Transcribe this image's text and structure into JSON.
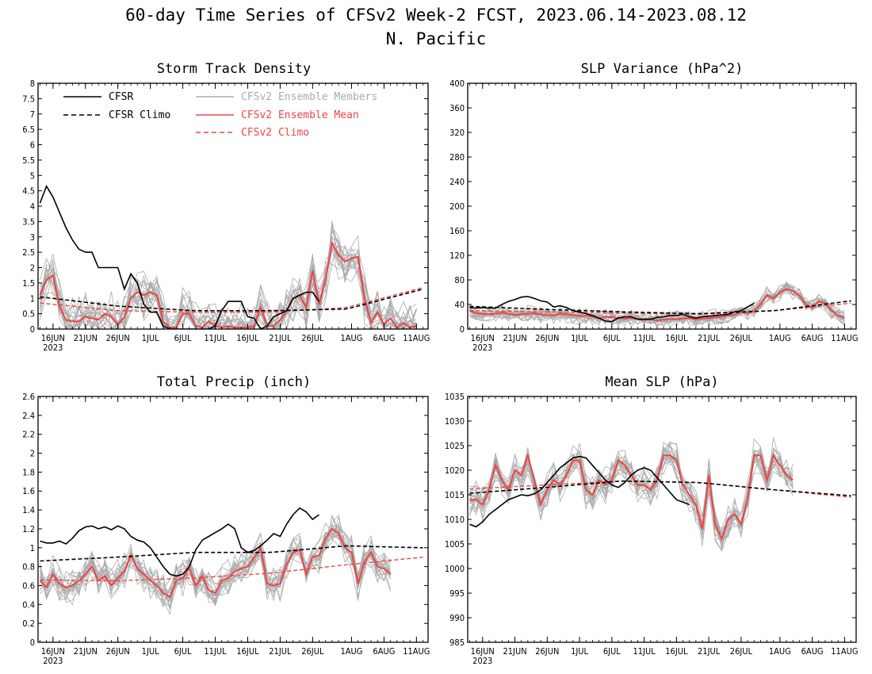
{
  "title_line1": "60-day Time Series of CFSv2 Week-2 FCST, 2023.06.14-2023.08.12",
  "title_line2": "N. Pacific",
  "colors": {
    "cfsr": "#000000",
    "ensemble_member": "#aaaaaa",
    "ensemble_mean": "#ee4444",
    "cfsv2_climo": "#ee4444"
  },
  "legend": {
    "cfsr": "CFSR",
    "cfsr_climo": "CFSR Climo",
    "members": "CFSv2 Ensemble Members",
    "mean": "CFSv2 Ensemble Mean",
    "cfsv2_climo": "CFSv2 Climo"
  },
  "x_ticks": {
    "labels": [
      "16JUN",
      "21JUN",
      "26JUN",
      "1JUL",
      "6JUL",
      "11JUL",
      "16JUL",
      "21JUL",
      "26JUL",
      "1AUG",
      "6AUG",
      "11AUG"
    ],
    "day_index": [
      2,
      7,
      12,
      17,
      22,
      27,
      32,
      37,
      42,
      48,
      53,
      58
    ],
    "year_label": "2023"
  },
  "chart_data": [
    {
      "type": "line",
      "title": "Storm Track Density",
      "x_unit": "day index from 2023-06-14",
      "ylim": [
        0,
        8
      ],
      "yticks": [
        "0",
        "0.5",
        "1",
        "1.5",
        "2",
        "2.5",
        "3",
        "3.5",
        "4",
        "4.5",
        "5",
        "5.5",
        "6",
        "6.5",
        "7",
        "7.5",
        "8"
      ],
      "show_legend": true,
      "legend_position": "top",
      "series": {
        "cfsr": [
          4.1,
          4.65,
          4.3,
          3.8,
          3.3,
          2.9,
          2.6,
          2.5,
          2.5,
          2.0,
          2.0,
          2.0,
          2.0,
          1.3,
          1.8,
          1.5,
          0.8,
          0.55,
          0.55,
          0.1,
          0,
          0,
          0,
          0,
          0,
          0,
          0,
          0.1,
          0.6,
          0.9,
          0.9,
          0.9,
          0.4,
          0.35,
          0,
          0.1,
          0.4,
          0.5,
          0.6,
          1.0,
          1.1,
          1.2,
          1.2,
          0.9
        ],
        "cfsr_climo": [
          1.05,
          0.75,
          0.6,
          0.6,
          0.65,
          1.3
        ],
        "ensemble_mean": [
          1.1,
          1.6,
          1.75,
          0.75,
          0.3,
          0.25,
          0.25,
          0.4,
          0.35,
          0.3,
          0.5,
          0.4,
          0.15,
          0.4,
          1.0,
          1.2,
          1.1,
          1.2,
          1.1,
          0.25,
          0.05,
          0.05,
          0.5,
          0.5,
          0.1,
          0.05,
          0.25,
          0.1,
          0.05,
          0.1,
          0.05,
          0.05,
          0.05,
          0.1,
          0.7,
          0.1,
          0.1,
          0.3,
          0.6,
          1.0,
          1.1,
          0.7,
          1.9,
          0.8,
          1.6,
          2.8,
          2.4,
          2.2,
          2.3,
          2.35,
          1.0,
          0.2,
          0.55,
          0.15,
          0.35,
          0.05,
          0.2,
          0.05,
          0.1
        ],
        "cfsv2_climo": [
          0.85,
          0.6,
          0.55,
          0.55,
          0.7,
          1.35
        ],
        "ensemble_spread": 0.55
      }
    },
    {
      "type": "line",
      "title": "SLP Variance (hPa^2)",
      "x_unit": "day index from 2023-06-14",
      "ylim": [
        0,
        400
      ],
      "yticks": [
        "0",
        "40",
        "80",
        "120",
        "160",
        "200",
        "240",
        "280",
        "320",
        "360",
        "400"
      ],
      "show_legend": false,
      "series": {
        "cfsr": [
          35,
          34,
          35,
          34,
          34,
          40,
          45,
          48,
          52,
          53,
          50,
          46,
          44,
          36,
          38,
          35,
          30,
          28,
          25,
          22,
          18,
          13,
          12,
          18,
          20,
          20,
          16,
          16,
          16,
          19,
          20,
          22,
          22,
          24,
          20,
          18,
          20,
          21,
          22,
          23,
          24,
          28,
          30,
          36,
          42
        ],
        "cfsr_climo": [
          37,
          32,
          28,
          25,
          30,
          46
        ],
        "ensemble_mean": [
          30,
          26,
          25,
          24,
          25,
          27,
          25,
          23,
          24,
          25,
          26,
          24,
          23,
          22,
          25,
          24,
          23,
          21,
          22,
          20,
          18,
          20,
          19,
          18,
          17,
          18,
          16,
          15,
          16,
          14,
          15,
          16,
          16,
          17,
          18,
          16,
          17,
          18,
          19,
          20,
          22,
          24,
          28,
          26,
          30,
          40,
          55,
          50,
          60,
          65,
          62,
          55,
          40,
          35,
          45,
          42,
          30,
          22,
          18
        ],
        "cfsv2_climo": [
          30,
          28,
          26,
          24,
          30,
          42
        ],
        "ensemble_spread": 9
      }
    },
    {
      "type": "line",
      "title": "Total Precip (inch)",
      "x_unit": "day index from 2023-06-14",
      "ylim": [
        0,
        2.6
      ],
      "yticks": [
        "0",
        "0.2",
        "0.4",
        "0.6",
        "0.8",
        "1",
        "1.2",
        "1.4",
        "1.6",
        "1.8",
        "2",
        "2.2",
        "2.4",
        "2.6"
      ],
      "show_legend": false,
      "series": {
        "cfsr": [
          1.07,
          1.05,
          1.05,
          1.07,
          1.04,
          1.1,
          1.18,
          1.22,
          1.23,
          1.2,
          1.22,
          1.19,
          1.23,
          1.2,
          1.12,
          1.08,
          1.06,
          1.0,
          0.9,
          0.8,
          0.72,
          0.7,
          0.72,
          0.8,
          0.98,
          1.08,
          1.12,
          1.16,
          1.2,
          1.25,
          1.2,
          1.0,
          0.95,
          0.97,
          1.02,
          1.08,
          1.15,
          1.12,
          1.25,
          1.35,
          1.42,
          1.38,
          1.3,
          1.35
        ],
        "cfsr_climo": [
          0.86,
          0.9,
          0.95,
          0.95,
          1.02,
          1.0
        ],
        "ensemble_mean": [
          0.65,
          0.58,
          0.72,
          0.62,
          0.58,
          0.6,
          0.65,
          0.72,
          0.8,
          0.65,
          0.7,
          0.6,
          0.68,
          0.75,
          0.92,
          0.78,
          0.72,
          0.65,
          0.6,
          0.52,
          0.48,
          0.65,
          0.68,
          0.78,
          0.6,
          0.7,
          0.55,
          0.52,
          0.65,
          0.68,
          0.75,
          0.78,
          0.8,
          0.9,
          1.0,
          0.62,
          0.6,
          0.62,
          0.82,
          0.95,
          0.98,
          0.72,
          0.9,
          0.92,
          1.1,
          1.2,
          1.15,
          1.0,
          0.95,
          0.62,
          0.85,
          0.95,
          0.8,
          0.78,
          0.72
        ],
        "cfsv2_climo": [
          0.66,
          0.65,
          0.68,
          0.73,
          0.82,
          0.9
        ],
        "ensemble_spread": 0.13
      }
    },
    {
      "type": "line",
      "title": "Mean SLP (hPa)",
      "x_unit": "day index from 2023-06-14",
      "ylim": [
        985,
        1035
      ],
      "yticks": [
        "985",
        "990",
        "995",
        "1000",
        "1005",
        "1010",
        "1015",
        "1020",
        "1025",
        "1030",
        "1035"
      ],
      "show_legend": false,
      "series": {
        "cfsr": [
          1009,
          1008.5,
          1009.5,
          1011,
          1012,
          1013,
          1014,
          1014.5,
          1015,
          1014.8,
          1015.2,
          1016,
          1017.5,
          1019,
          1020.5,
          1021.5,
          1022.5,
          1022.8,
          1022.5,
          1021,
          1019.5,
          1018,
          1017,
          1016.5,
          1017.5,
          1019,
          1020,
          1020.5,
          1020,
          1018.5,
          1017,
          1015.5,
          1014,
          1013.5,
          1013
        ],
        "cfsr_climo": [
          1015.3,
          1016.5,
          1017.8,
          1017.5,
          1016,
          1014.8
        ],
        "ensemble_mean": [
          1014,
          1014,
          1013,
          1016,
          1021,
          1018,
          1016,
          1020,
          1019,
          1023,
          1018,
          1013,
          1016,
          1018,
          1017,
          1019,
          1022,
          1022,
          1016,
          1015,
          1018,
          1017,
          1018,
          1022,
          1021,
          1019,
          1017,
          1017,
          1016,
          1018,
          1023,
          1023,
          1022,
          1017,
          1015,
          1013,
          1008,
          1019,
          1009,
          1006,
          1010,
          1011,
          1009,
          1014,
          1023,
          1023,
          1018,
          1023,
          1021,
          1019,
          1018
        ],
        "cfsv2_climo": [
          1016.2,
          1017,
          1017.8,
          1017.5,
          1016,
          1014.5
        ],
        "ensemble_spread": 2.5
      }
    }
  ]
}
